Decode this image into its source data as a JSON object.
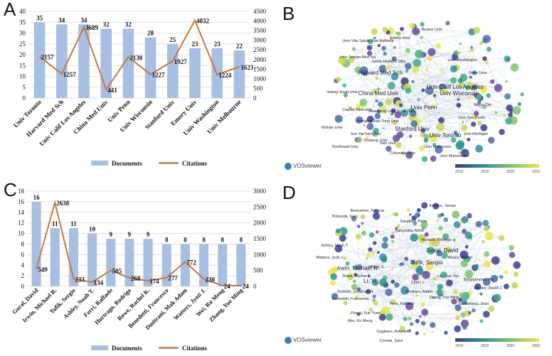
{
  "panels": {
    "a": "A",
    "b": "B",
    "c": "C",
    "d": "D"
  },
  "colors": {
    "bar": "#a7bfe3",
    "line": "#c8773a",
    "grid": "#dcdcdc",
    "text": "#111111"
  },
  "chart_data": [
    {
      "type": "bar",
      "id": "institutions",
      "categories": [
        "Univ Toronto",
        "Harvard Med Sch",
        "Univ Calif Los Angeles",
        "China Med Univ",
        "Univ Penn",
        "Univ Wisconsin",
        "Stanford Univ",
        "Emory Univ",
        "Univ Washington",
        "Univ Melbourne"
      ],
      "series": [
        {
          "name": "Documents",
          "axis": "left",
          "values": [
            35,
            34,
            34,
            32,
            32,
            28,
            25,
            23,
            23,
            22
          ]
        },
        {
          "name": "Citations",
          "axis": "right",
          "kind": "line",
          "values": [
            2157,
            1257,
            3689,
            441,
            2130,
            1227,
            1927,
            4032,
            1224,
            1623
          ]
        }
      ],
      "ylim_left": [
        0,
        40
      ],
      "yticks_left": [
        0,
        5,
        10,
        15,
        20,
        25,
        30,
        35,
        40
      ],
      "ylim_right": [
        0,
        4500
      ],
      "yticks_right": [
        0,
        500,
        1000,
        1500,
        2000,
        2500,
        3000,
        3500,
        4000,
        4500
      ],
      "legend": [
        "Documents",
        "Citations"
      ],
      "legend_position": "bottom"
    },
    {
      "type": "bar",
      "id": "authors",
      "categories": [
        "Goral, David",
        "Irwin, Michael R.",
        "Tufik, Sergio",
        "Ashley, Noah T.",
        "Ferri, Raffaele",
        "Hurtrago, Rodrigo",
        "Rowe, Rachel K.",
        "Benedetti, Francesco",
        "Dmitrani, Mak Adam",
        "Watters, Jyoti J.",
        "Wei, Ru Meng",
        "Zhang, Yue Ming"
      ],
      "series": [
        {
          "name": "Documents",
          "axis": "left",
          "values": [
            16,
            11,
            11,
            10,
            9,
            9,
            9,
            8,
            8,
            8,
            8,
            8
          ]
        },
        {
          "name": "Citations",
          "axis": "right",
          "kind": "line",
          "values": [
            549,
            2638,
            233,
            134,
            505,
            268,
            174,
            277,
            772,
            230,
            24,
            24
          ]
        }
      ],
      "ylim_left": [
        0,
        18
      ],
      "yticks_left": [
        0,
        2,
        4,
        6,
        8,
        10,
        12,
        14,
        16,
        18
      ],
      "ylim_right": [
        0,
        3000
      ],
      "yticks_right": [
        0,
        500,
        1000,
        1500,
        2000,
        2500,
        3000
      ],
      "legend": [
        "Documents",
        "Citations"
      ],
      "legend_position": "bottom"
    }
  ],
  "network_b": {
    "labels": [
      "Boston Univ",
      "Univ Vita Salute San Raffaele",
      "Johns Hopkins Univ",
      "Harvard Med Sch",
      "Univ Tehran Med Sci",
      "China Med Univ",
      "Univ Calif Los Angeles",
      "Univ Wisconsin",
      "Univ Penn",
      "Huazhong Univ Sci & Tech",
      "Shanghai Jiao Tong Univ",
      "Stanford Univ",
      "Univ Toronto",
      "Univ Melbourne",
      "Univ Manchester",
      "Islamic Azad Univ",
      "Univ Sao Paulo",
      "Emory Univ",
      "Univ Washington",
      "Duke Univ",
      "Sun Yat Sen Univ",
      "Yale Univ",
      "Capital Med Univ",
      "Zhejiang Univ",
      "Mayo Clin",
      "Southeast Univ",
      "Columbia Univ",
      "Univ Michigan",
      "Wuhan Univ"
    ],
    "brand": "VOSviewer",
    "colorbar_ticks": [
      "2016",
      "2018",
      "2020",
      "2022"
    ]
  },
  "network_d": {
    "labels": [
      "Goral, David",
      "Irwin, Michael R.",
      "Tufik, Sergio",
      "Li, Yi",
      "Rowe, Rachel K.",
      "Zhang, Xue Yuan",
      "Wei, Ru Meng",
      "Ferri, Raffaele",
      "Benedetti, Francesco",
      "Ashley, Noah T.",
      "Chen, L.",
      "Wang, X.",
      "Daudelin, Peter",
      "Batrynska, Anna",
      "Hurtado, Rodrigo",
      "Watters, Jyoti J.",
      "Zhang, Yue Ming",
      "Kovacs, Tamas",
      "Brooks, David J.",
      "Santamaria, Joan",
      "Gagliano, Antonella",
      "Bonnavion, Patricia",
      "Poleszak, Ewa",
      "Liu, Xue Yan",
      "Dmitrani, Adam",
      "Correia, Sara",
      "Moura, Rafael",
      "Borghammer, Per",
      "Gottlieb, Jonathan H."
    ],
    "brand": "VOSviewer",
    "colorbar_ticks": [
      "2016",
      "2018",
      "2020",
      "2022"
    ]
  }
}
